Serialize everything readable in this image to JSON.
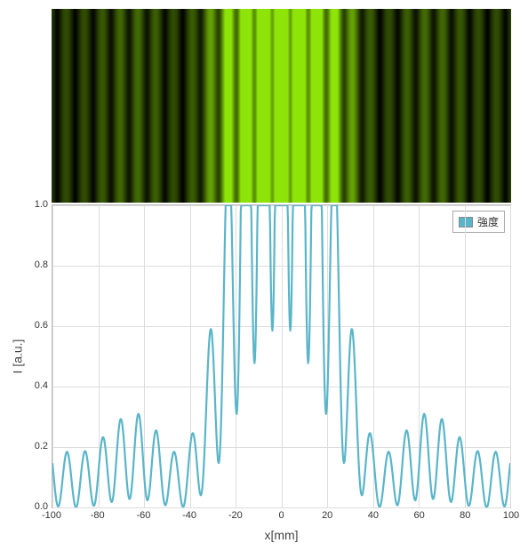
{
  "pattern": {
    "background": "#000000",
    "color": "#8ee408",
    "samples": 520,
    "xrange": [
      -100,
      100
    ]
  },
  "chart": {
    "type": "line",
    "series_label": "強度",
    "line_color": "#5ab5c9",
    "legend_swatch": "#5ab5c9",
    "line_width": 2.2,
    "xlabel": "x[mm]",
    "ylabel": "I [a.u.]",
    "xlim": [
      -100,
      100
    ],
    "ylim": [
      0.0,
      1.0
    ],
    "xtick_step": 20,
    "ytick_step": 0.2,
    "grid_color": "#dddddd",
    "border_color": "#bbbbbb",
    "background": "#ffffff",
    "label_fontsize": 14,
    "tick_fontsize": 11,
    "model": {
      "slit_period": 7.8,
      "envelope_halfwidth": 45,
      "samples": 1000
    }
  }
}
